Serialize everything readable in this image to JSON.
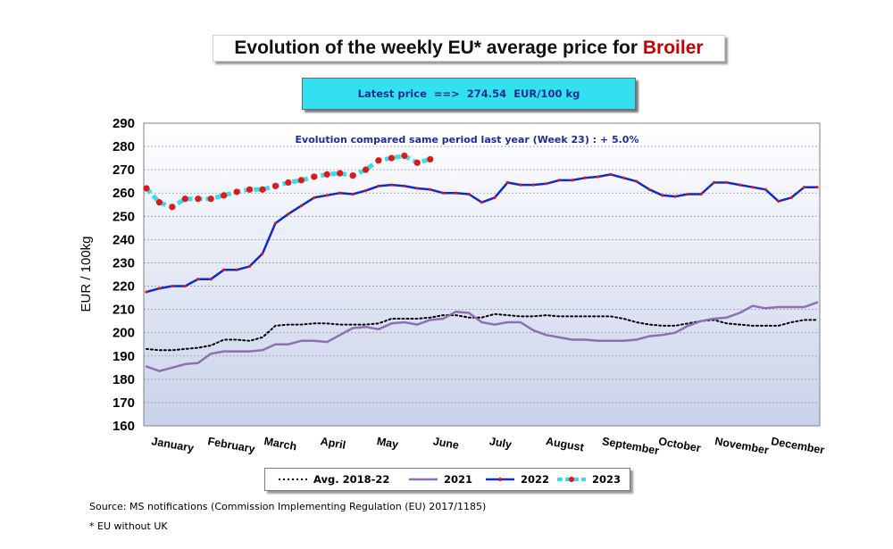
{
  "header": {
    "title_prefix": "Evolution of the weekly EU* average price for",
    "title_product": "Broiler"
  },
  "latest": {
    "label": "Latest price",
    "arrow": "==>",
    "value": "274.54",
    "unit": "EUR/100 kg"
  },
  "note": "Evolution compared same period last year   (Week 23) : + 5.0%",
  "footer": {
    "source": "Source: MS notifications (Commission Implementing Regulation (EU) 2017/1185)",
    "footnote": "* EU without UK"
  },
  "chart_data": {
    "type": "line",
    "title": "Evolution of the weekly EU* average price for Broiler",
    "xlabel": "",
    "ylabel": "EUR / 100kg",
    "ylim": [
      160,
      290
    ],
    "yticks": [
      160,
      170,
      180,
      190,
      200,
      210,
      220,
      230,
      240,
      250,
      260,
      270,
      280,
      290
    ],
    "xlim": [
      1,
      53
    ],
    "x_unit": "week",
    "categories": [
      "January",
      "February",
      "March",
      "April",
      "May",
      "June",
      "July",
      "August",
      "September",
      "October",
      "November",
      "December"
    ],
    "grid": true,
    "legend_position": "bottom",
    "series": [
      {
        "name": "Avg. 2018-22",
        "color": "#000000",
        "style": "dotted",
        "x": [
          1,
          2,
          3,
          4,
          5,
          6,
          7,
          8,
          9,
          10,
          11,
          12,
          13,
          14,
          15,
          16,
          17,
          18,
          19,
          20,
          21,
          22,
          23,
          24,
          25,
          26,
          27,
          28,
          29,
          30,
          31,
          32,
          33,
          34,
          35,
          36,
          37,
          38,
          39,
          40,
          41,
          42,
          43,
          44,
          45,
          46,
          47,
          48,
          49,
          50,
          51,
          52,
          53
        ],
        "values": [
          193,
          192.5,
          192.5,
          193,
          193.5,
          194.5,
          197,
          197,
          196.5,
          198,
          203,
          203.5,
          203.5,
          204,
          204,
          203.5,
          203.5,
          203.5,
          204,
          206,
          206,
          206,
          206.5,
          207.5,
          207.5,
          206.5,
          206.5,
          208,
          207.5,
          207,
          207,
          207.5,
          207,
          207,
          207,
          207,
          207,
          206,
          204.5,
          203.5,
          203,
          203,
          204,
          205,
          205.5,
          204,
          203.5,
          203,
          203,
          203,
          204.5,
          205.5,
          205.5
        ]
      },
      {
        "name": "2021",
        "color": "#8e6fb0",
        "style": "solid",
        "x": [
          1,
          2,
          3,
          4,
          5,
          6,
          7,
          8,
          9,
          10,
          11,
          12,
          13,
          14,
          15,
          16,
          17,
          18,
          19,
          20,
          21,
          22,
          23,
          24,
          25,
          26,
          27,
          28,
          29,
          30,
          31,
          32,
          33,
          34,
          35,
          36,
          37,
          38,
          39,
          40,
          41,
          42,
          43,
          44,
          45,
          46,
          47,
          48,
          49,
          50,
          51,
          52,
          53
        ],
        "values": [
          185.5,
          183.5,
          185,
          186.5,
          187,
          191,
          192,
          192,
          192,
          192.5,
          195,
          195,
          196.5,
          196.5,
          196,
          199,
          202,
          202.5,
          201.5,
          204,
          204.5,
          203.5,
          205.5,
          206,
          209,
          208.5,
          204.5,
          203.5,
          204.5,
          204.5,
          201,
          199,
          198,
          197,
          197,
          196.5,
          196.5,
          196.5,
          197,
          198.5,
          199,
          200,
          203,
          205,
          206,
          206.5,
          208.5,
          211.5,
          210.5,
          211,
          211,
          211,
          213
        ]
      },
      {
        "name": "2022",
        "color": "#1428c8",
        "style": "solid-dots",
        "x": [
          1,
          2,
          3,
          4,
          5,
          6,
          7,
          8,
          9,
          10,
          11,
          12,
          13,
          14,
          15,
          16,
          17,
          18,
          19,
          20,
          21,
          22,
          23,
          24,
          25,
          26,
          27,
          28,
          29,
          30,
          31,
          32,
          33,
          34,
          35,
          36,
          37,
          38,
          39,
          40,
          41,
          42,
          43,
          44,
          45,
          46,
          47,
          48,
          49,
          50,
          51,
          52,
          53
        ],
        "values": [
          217.5,
          219,
          220,
          220,
          223,
          223,
          227,
          227,
          228.5,
          234,
          247,
          251,
          254.5,
          258,
          259,
          260,
          259.5,
          261,
          263,
          263.5,
          263,
          262,
          261.5,
          260,
          260,
          259.5,
          256,
          258,
          264.5,
          263.5,
          263.5,
          264,
          265.5,
          265.5,
          266.5,
          267,
          268,
          266.5,
          265,
          261.5,
          259,
          258.5,
          259.5,
          259.5,
          264.5,
          264.5,
          263.5,
          262.5,
          261.5,
          256.5,
          258,
          262.5,
          262.5
        ]
      },
      {
        "name": "2023",
        "color": "#3ddcec",
        "marker_color": "#e01818",
        "style": "dashed-dots",
        "x": [
          1,
          2,
          3,
          4,
          5,
          6,
          7,
          8,
          9,
          10,
          11,
          12,
          13,
          14,
          15,
          16,
          17,
          18,
          19,
          20,
          21,
          22,
          23
        ],
        "values": [
          262,
          256,
          254,
          257.5,
          257.5,
          257.5,
          259,
          260.5,
          261.5,
          261.5,
          263,
          264.5,
          265.5,
          267,
          268,
          268.5,
          267.5,
          270,
          274,
          275,
          276,
          273,
          274.5
        ]
      }
    ]
  }
}
